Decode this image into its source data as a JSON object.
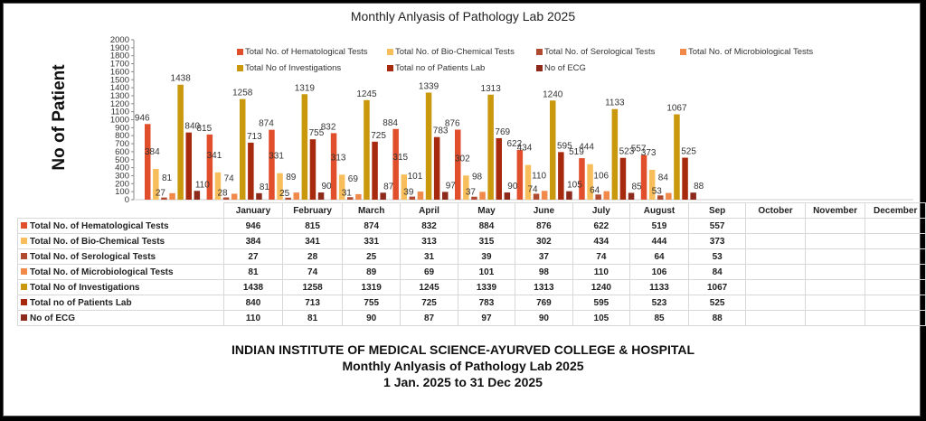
{
  "chart_data": {
    "type": "bar",
    "title": "Monthly Anlyasis of Pathology Lab  2025",
    "ylabel": "No of Patient",
    "xlabel": "",
    "ylim": [
      0,
      2000
    ],
    "yticks": [
      "0",
      "100",
      "200",
      "300",
      "400",
      "500",
      "600",
      "700",
      "800",
      "900",
      "1000",
      "1100",
      "1200",
      "1300",
      "1400",
      "1500",
      "1600",
      "1700",
      "1800",
      "1900",
      "2000"
    ],
    "categories": [
      "January",
      "February",
      "March",
      "April",
      "May",
      "June",
      "July",
      "August",
      "Sep",
      "October",
      "November",
      "December"
    ],
    "legend_position": "top",
    "series": [
      {
        "name": "Total No. of Hematological Tests",
        "color": "#E04E2B",
        "values": [
          946,
          815,
          874,
          832,
          884,
          876,
          622,
          519,
          557,
          null,
          null,
          null
        ]
      },
      {
        "name": "Total No. of Bio-Chemical Tests",
        "color": "#F7BE5B",
        "values": [
          384,
          341,
          331,
          313,
          315,
          302,
          434,
          444,
          373,
          null,
          null,
          null
        ]
      },
      {
        "name": "Total No. of Serological Tests",
        "color": "#B04A30",
        "values": [
          27,
          28,
          25,
          31,
          39,
          37,
          74,
          64,
          53,
          null,
          null,
          null
        ]
      },
      {
        "name": "Total No. of Microbiological Tests",
        "color": "#F0894A",
        "values": [
          81,
          74,
          89,
          69,
          101,
          98,
          110,
          106,
          84,
          null,
          null,
          null
        ]
      },
      {
        "name": "Total No of  Investigations",
        "color": "#C9980C",
        "values": [
          1438,
          1258,
          1319,
          1245,
          1339,
          1313,
          1240,
          1133,
          1067,
          null,
          null,
          null
        ]
      },
      {
        "name": "Total no of Patients Lab",
        "color": "#A82A0E",
        "values": [
          840,
          713,
          755,
          725,
          783,
          769,
          595,
          523,
          525,
          null,
          null,
          null
        ]
      },
      {
        "name": "No of ECG",
        "color": "#8E2A1C",
        "values": [
          110,
          81,
          90,
          87,
          97,
          90,
          105,
          85,
          88,
          null,
          null,
          null
        ]
      }
    ]
  },
  "footer": {
    "line1": "INDIAN INSTITUTE OF MEDICAL SCIENCE-AYURVED COLLEGE & HOSPITAL",
    "line2": "Monthly Anlyasis of Pathology Lab  2025",
    "line3": "1 Jan. 2025 to 31 Dec 2025"
  }
}
